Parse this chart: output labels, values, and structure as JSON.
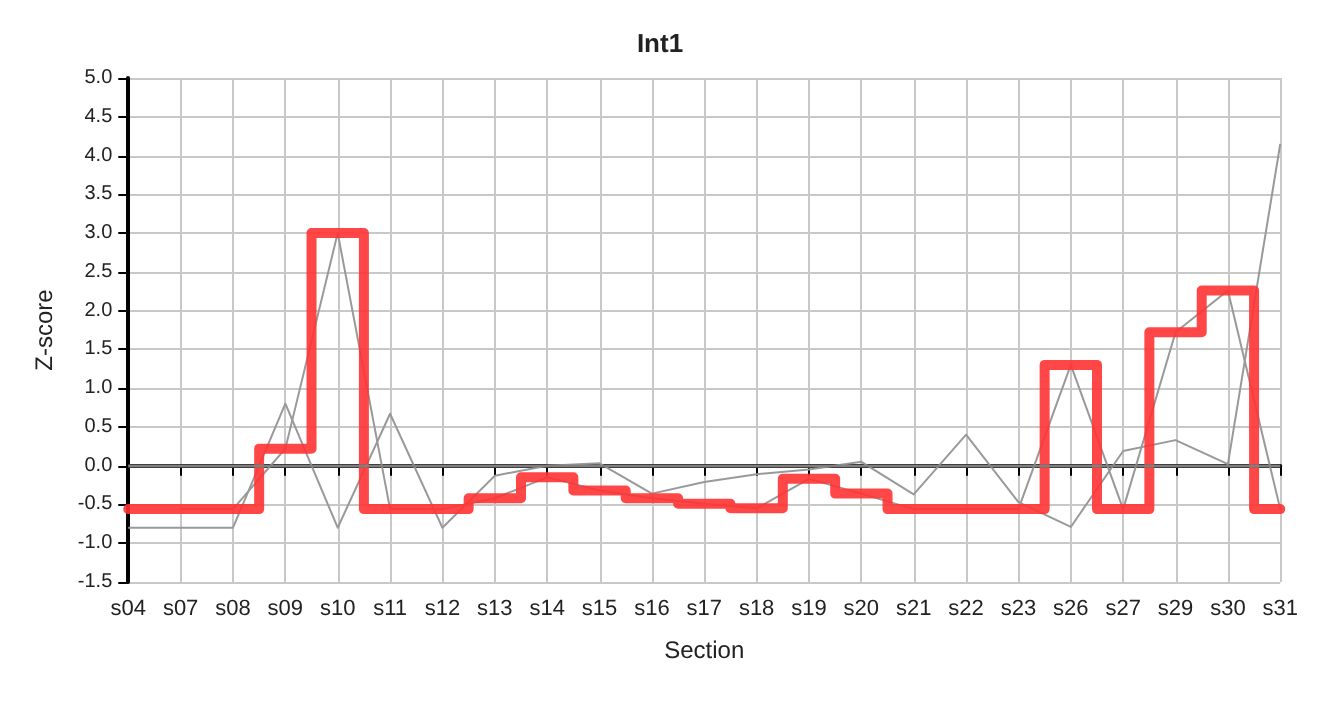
{
  "chart_data": {
    "type": "line",
    "title": "Int1",
    "xlabel": "Section",
    "ylabel": "Z-score",
    "categories": [
      "s04",
      "s07",
      "s08",
      "s09",
      "s10",
      "s11",
      "s12",
      "s13",
      "s14",
      "s15",
      "s16",
      "s17",
      "s18",
      "s19",
      "s20",
      "s21",
      "s22",
      "s23",
      "s26",
      "s27",
      "s29",
      "s30",
      "s31"
    ],
    "series": [
      {
        "color": "#999999",
        "values": [
          -0.8,
          -0.8,
          -0.8,
          0.8,
          -0.8,
          0.67,
          -0.8,
          -0.13,
          0.0,
          0.03,
          -0.36,
          -0.21,
          -0.11,
          -0.05,
          0.05,
          -0.37,
          0.4,
          -0.47,
          -0.79,
          0.19,
          0.33,
          0.02,
          4.15
        ]
      },
      {
        "color": "#999999",
        "values": [
          null,
          -0.56,
          -0.56,
          0.22,
          3.0,
          -0.56,
          -0.56,
          -0.42,
          -0.15,
          -0.32,
          -0.42,
          -0.49,
          -0.55,
          -0.17,
          -0.36,
          -0.56,
          -0.56,
          -0.56,
          1.3,
          -0.56,
          1.72,
          2.26,
          -0.56
        ]
      },
      {
        "type": "step",
        "color": "#ff3333",
        "values": [
          -0.56,
          -0.56,
          -0.56,
          0.22,
          3.0,
          -0.56,
          -0.56,
          -0.42,
          -0.15,
          -0.32,
          -0.42,
          -0.49,
          -0.55,
          -0.17,
          -0.36,
          -0.56,
          -0.56,
          -0.56,
          1.3,
          -0.56,
          1.72,
          2.26,
          -0.56
        ]
      }
    ],
    "ylim": [
      -1.5,
      5.0
    ],
    "yticks": [
      {
        "value": -1.5,
        "label": "-1.5"
      },
      {
        "value": -1,
        "label": "-1.0"
      },
      {
        "value": -0.5,
        "label": "-0.5"
      },
      {
        "value": 0,
        "label": "0.0"
      },
      {
        "value": 0.5,
        "label": "0.5"
      },
      {
        "value": 1,
        "label": "1.0"
      },
      {
        "value": 1.5,
        "label": "1.5"
      },
      {
        "value": 2,
        "label": "2.0"
      },
      {
        "value": 2.5,
        "label": "2.5"
      },
      {
        "value": 3,
        "label": "3.0"
      },
      {
        "value": 3.5,
        "label": "3.5"
      },
      {
        "value": 4,
        "label": "4.0"
      },
      {
        "value": 4.5,
        "label": "4.5"
      },
      {
        "value": 5,
        "label": "5.0"
      }
    ],
    "ref_lines": [
      {
        "axis": "y",
        "value": 0,
        "color": "#808080"
      }
    ],
    "grid": true,
    "marker": "none"
  }
}
